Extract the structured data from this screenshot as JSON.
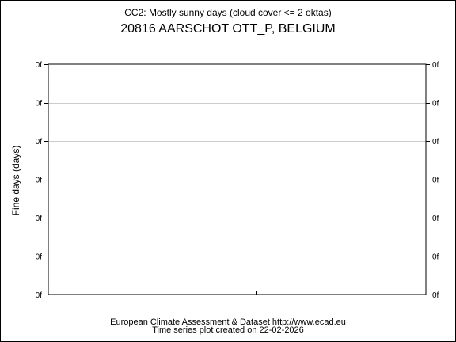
{
  "chart_data": {
    "type": "line",
    "subtitle": "CC2: Mostly sunny days (cloud cover <= 2 oktas)",
    "title": "20816 AARSCHOT OTT_P, BELGIUM",
    "ylabel": "Fine days (days)",
    "xlabel": "",
    "y_tick_labels": [
      "0f",
      "0f",
      "0f",
      "0f",
      "0f",
      "0f",
      "0f"
    ],
    "y_tick_labels_right": [
      "0f",
      "0f",
      "0f",
      "0f",
      "0f",
      "0f",
      "0f"
    ],
    "series": [],
    "grid": true,
    "legend": "none"
  },
  "footer": {
    "line1": "European Climate Assessment & Dataset  http://www.ecad.eu",
    "line2": "Time series plot created on 22-02-2026"
  },
  "colors": {
    "background": "#ffffff",
    "axis": "#000000",
    "grid": "#cccccc",
    "text": "#000000"
  }
}
